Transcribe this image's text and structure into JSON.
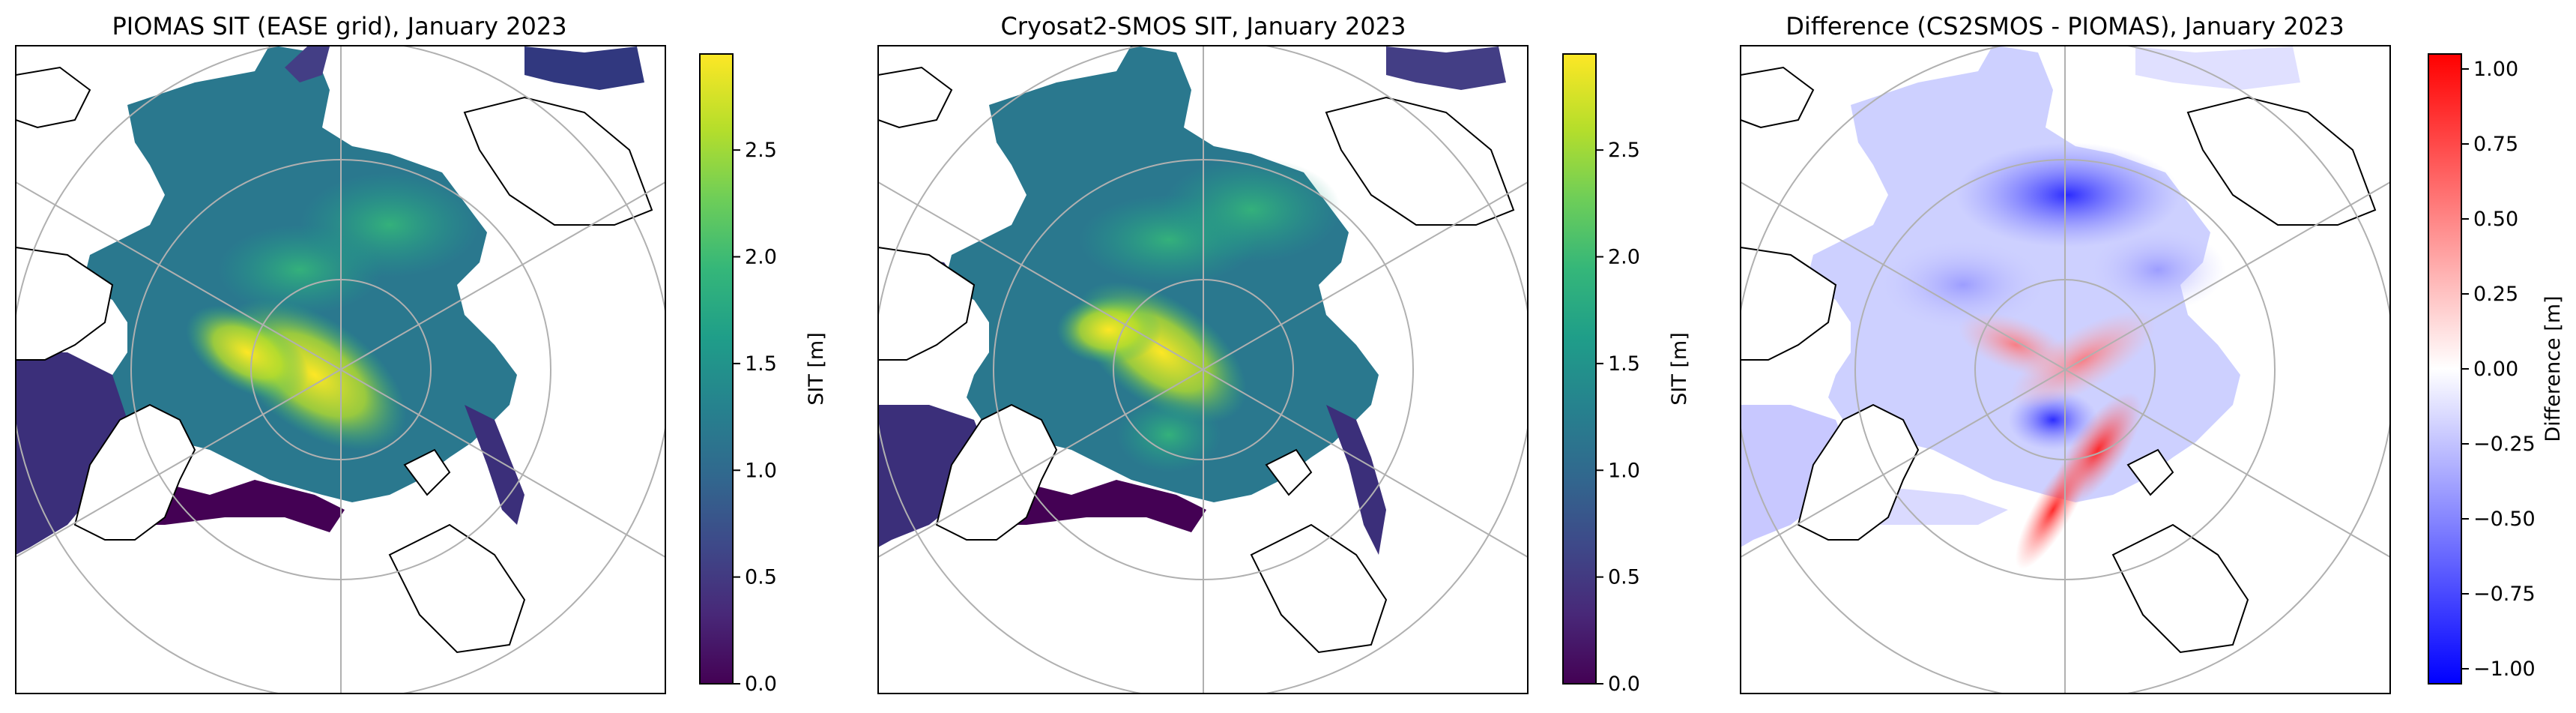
{
  "chart_data": [
    {
      "type": "heatmap",
      "projection": "north-polar-stereographic",
      "title": "PIOMAS SIT (EASE grid), January 2023",
      "colormap": "viridis",
      "colorbar": {
        "label": "SIT [m]",
        "ticks": [
          0.0,
          0.5,
          1.0,
          1.5,
          2.0,
          2.5
        ],
        "tick_labels": [
          "0.0",
          "0.5",
          "1.0",
          "1.5",
          "2.0",
          "2.5"
        ],
        "range": [
          0.0,
          2.95
        ]
      },
      "grid": true
    },
    {
      "type": "heatmap",
      "projection": "north-polar-stereographic",
      "title": "Cryosat2-SMOS SIT, January 2023",
      "colormap": "viridis",
      "colorbar": {
        "label": "SIT [m]",
        "ticks": [
          0.0,
          0.5,
          1.0,
          1.5,
          2.0,
          2.5
        ],
        "tick_labels": [
          "0.0",
          "0.5",
          "1.0",
          "1.5",
          "2.0",
          "2.5"
        ],
        "range": [
          0.0,
          2.95
        ]
      },
      "grid": true
    },
    {
      "type": "heatmap",
      "projection": "north-polar-stereographic",
      "title": "Difference (CS2SMOS - PIOMAS), January 2023",
      "colormap": "bwr",
      "colorbar": {
        "label": "Difference [m]",
        "ticks": [
          -1.0,
          -0.75,
          -0.5,
          -0.25,
          0.0,
          0.25,
          0.5,
          0.75,
          1.0
        ],
        "tick_labels": [
          "−1.00",
          "−0.75",
          "−0.50",
          "−0.25",
          "0.00",
          "0.25",
          "0.50",
          "0.75",
          "1.00"
        ],
        "range": [
          -1.05,
          1.05
        ]
      },
      "grid": true
    }
  ],
  "colors": {
    "land": "#ffffff",
    "coastline": "#000000",
    "gridline": "#b0b0b0",
    "viridis_low": "#440154",
    "viridis_mid": "#21918c",
    "viridis_high": "#fde725",
    "bwr_low": "#0000ff",
    "bwr_mid": "#ffffff",
    "bwr_high": "#ff0000"
  }
}
